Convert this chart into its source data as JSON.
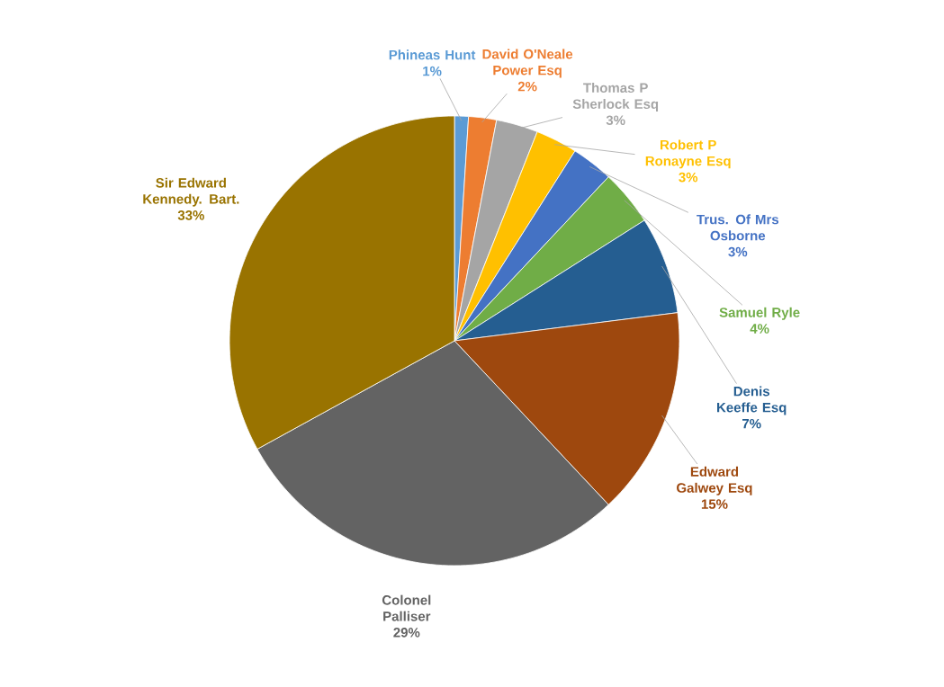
{
  "chart_data": {
    "type": "pie",
    "categories": [
      "Phineas Hunt",
      "David O'Neale Power Esq",
      "Thomas P Sherlock Esq",
      "Robert P Ronayne Esq",
      "Trus. Of Mrs Osborne",
      "Samuel Ryle",
      "Denis Keeffe Esq",
      "Edward Galwey Esq",
      "Colonel Palliser",
      "Sir Edward Kennedy. Bart."
    ],
    "values": [
      1,
      2,
      3,
      3,
      3,
      4,
      7,
      15,
      29,
      33
    ],
    "value_labels": [
      "1%",
      "2%",
      "3%",
      "3%",
      "3%",
      "4%",
      "7%",
      "15%",
      "29%",
      "33%"
    ],
    "colors": [
      "#5b9bd5",
      "#ed7d31",
      "#a5a5a5",
      "#ffc000",
      "#4472c4",
      "#70ad47",
      "#255e91",
      "#9e480e",
      "#636363",
      "#997300"
    ]
  }
}
